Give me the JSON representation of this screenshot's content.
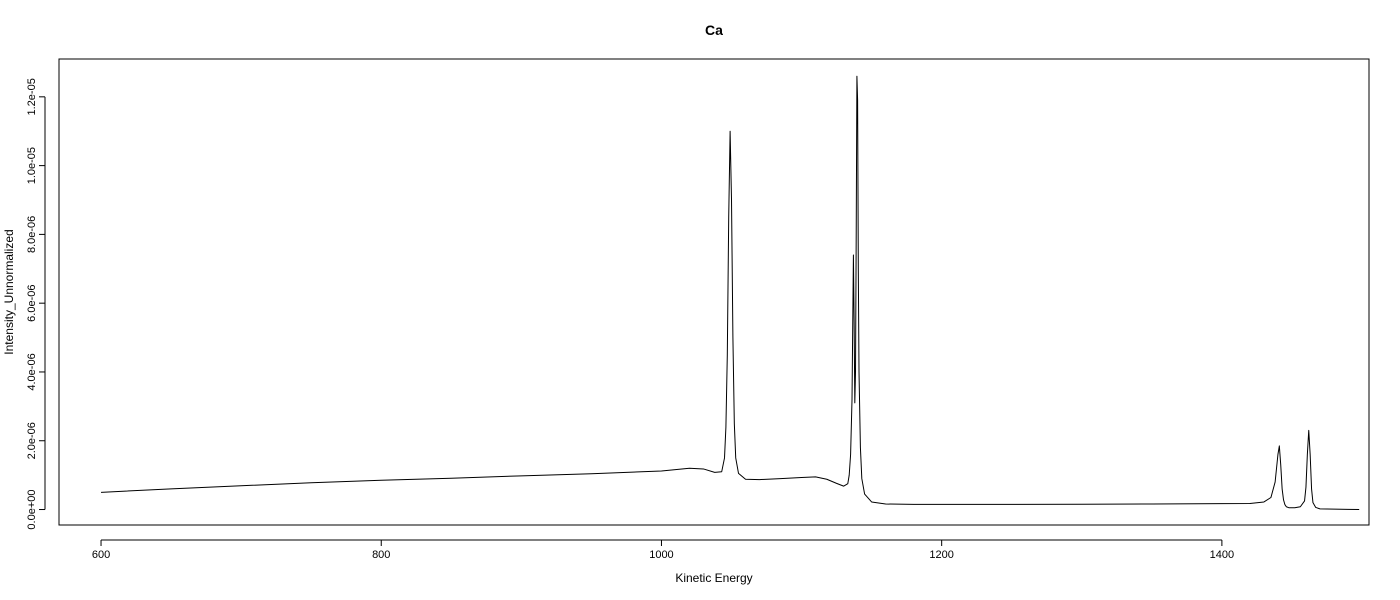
{
  "chart_data": {
    "type": "line",
    "title": "Ca",
    "xlabel": "Kinetic Energy",
    "ylabel": "Intensity_Unnormalized",
    "xlim": [
      570,
      1505
    ],
    "ylim": [
      -4.5e-07,
      1.31e-05
    ],
    "grid": false,
    "legend": "none",
    "x_ticks": [
      {
        "value": 600,
        "label": "600"
      },
      {
        "value": 800,
        "label": "800"
      },
      {
        "value": 1000,
        "label": "1000"
      },
      {
        "value": 1200,
        "label": "1200"
      },
      {
        "value": 1400,
        "label": "1400"
      }
    ],
    "y_ticks": [
      {
        "value": 0,
        "label": "0.0e+00"
      },
      {
        "value": 2e-06,
        "label": "2.0e-06"
      },
      {
        "value": 4e-06,
        "label": "4.0e-06"
      },
      {
        "value": 6e-06,
        "label": "6.0e-06"
      },
      {
        "value": 8e-06,
        "label": "8.0e-06"
      },
      {
        "value": 1e-05,
        "label": "1.0e-05"
      },
      {
        "value": 1.2e-05,
        "label": "1.2e-05"
      }
    ],
    "series": [
      {
        "color": "#000000",
        "x": [
          600,
          650,
          700,
          750,
          800,
          850,
          900,
          950,
          1000,
          1020,
          1030,
          1038,
          1043,
          1045,
          1046,
          1047,
          1048,
          1049,
          1050,
          1051,
          1052,
          1053,
          1055,
          1060,
          1070,
          1085,
          1100,
          1110,
          1118,
          1125,
          1130,
          1133,
          1134,
          1135,
          1136,
          1137,
          1137.5,
          1138,
          1138.5,
          1139,
          1139.5,
          1140,
          1140.5,
          1141,
          1142,
          1143,
          1145,
          1150,
          1160,
          1180,
          1200,
          1250,
          1300,
          1350,
          1400,
          1420,
          1430,
          1435,
          1438,
          1440,
          1441,
          1442,
          1443,
          1444,
          1445,
          1446,
          1448,
          1452,
          1456,
          1459,
          1460,
          1461,
          1462,
          1463,
          1464,
          1465,
          1467,
          1470,
          1480,
          1490,
          1498
        ],
        "y": [
          5e-07,
          6e-07,
          6.9e-07,
          7.8e-07,
          8.5e-07,
          9.1e-07,
          9.8e-07,
          1.04e-06,
          1.12e-06,
          1.2e-06,
          1.18e-06,
          1.08e-06,
          1.1e-06,
          1.5e-06,
          2.4e-06,
          4.5e-06,
          8.5e-06,
          1.1e-05,
          9e-06,
          5e-06,
          2.5e-06,
          1.5e-06,
          1.05e-06,
          8.8e-07,
          8.7e-07,
          9e-07,
          9.3e-07,
          9.5e-07,
          8.8e-07,
          7.6e-07,
          6.8e-07,
          7.5e-07,
          1e-06,
          1.6e-06,
          3.2e-06,
          7.4e-06,
          5.5e-06,
          3.1e-06,
          4e-06,
          8e-06,
          1.26e-05,
          1.19e-05,
          7e-06,
          4e-06,
          1.8e-06,
          9e-07,
          4.5e-07,
          2.2e-07,
          1.6e-07,
          1.5e-07,
          1.5e-07,
          1.5e-07,
          1.55e-07,
          1.6e-07,
          1.7e-07,
          1.75e-07,
          2.2e-07,
          3.5e-07,
          8e-07,
          1.6e-06,
          1.85e-06,
          1.3e-06,
          6e-07,
          2.8e-07,
          1.4e-07,
          8e-08,
          5e-08,
          5e-08,
          8e-08,
          2.5e-07,
          6.5e-07,
          1.6e-06,
          2.3e-06,
          1.6e-06,
          6e-07,
          2e-07,
          6e-08,
          2e-08,
          1e-08,
          5e-09,
          0.0
        ]
      }
    ]
  }
}
